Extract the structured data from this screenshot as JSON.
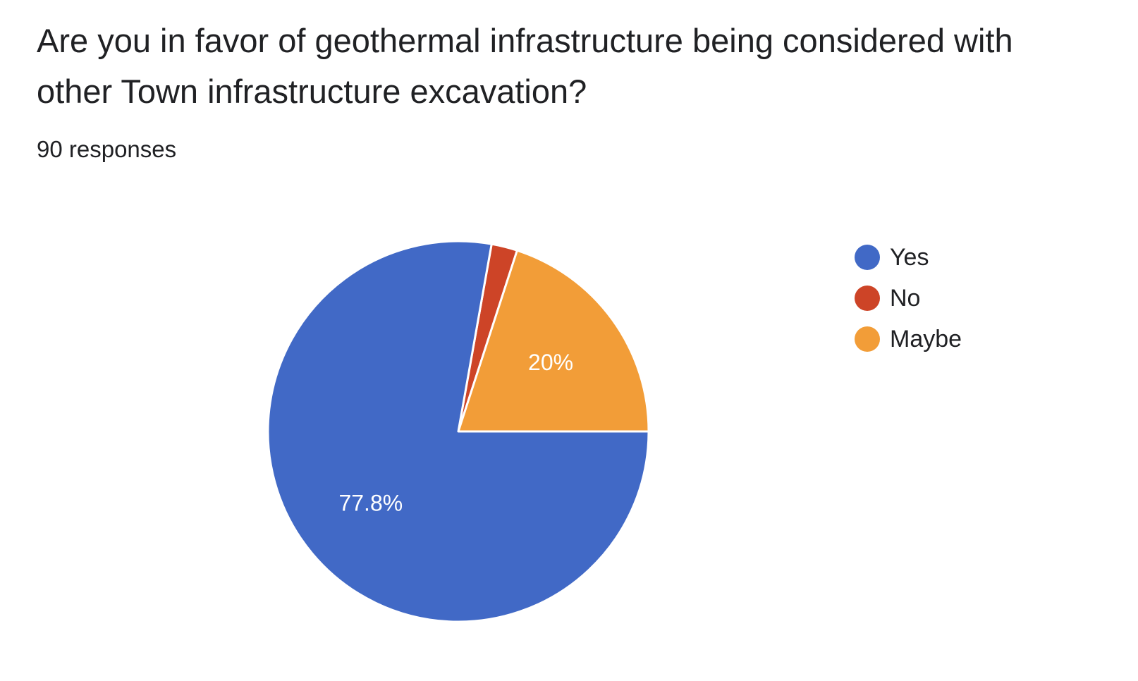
{
  "header": {
    "question": "Are you in favor of geothermal infrastructure being considered with other Town infrastructure excavation?",
    "responses": "90 responses"
  },
  "chart_data": {
    "type": "pie",
    "title": "Are you in favor of geothermal infrastructure being considered with other Town infrastructure excavation?",
    "total_responses": 90,
    "categories": [
      "Yes",
      "No",
      "Maybe"
    ],
    "values": [
      77.8,
      2.2,
      20
    ],
    "data_labels": [
      "77.8%",
      "",
      "20%"
    ],
    "colors": [
      "#4169c6",
      "#cd4427",
      "#f29d38"
    ],
    "legend_position": "right"
  },
  "legend": {
    "items": [
      {
        "label": "Yes",
        "color": "#4169c6"
      },
      {
        "label": "No",
        "color": "#cd4427"
      },
      {
        "label": "Maybe",
        "color": "#f29d38"
      }
    ]
  }
}
